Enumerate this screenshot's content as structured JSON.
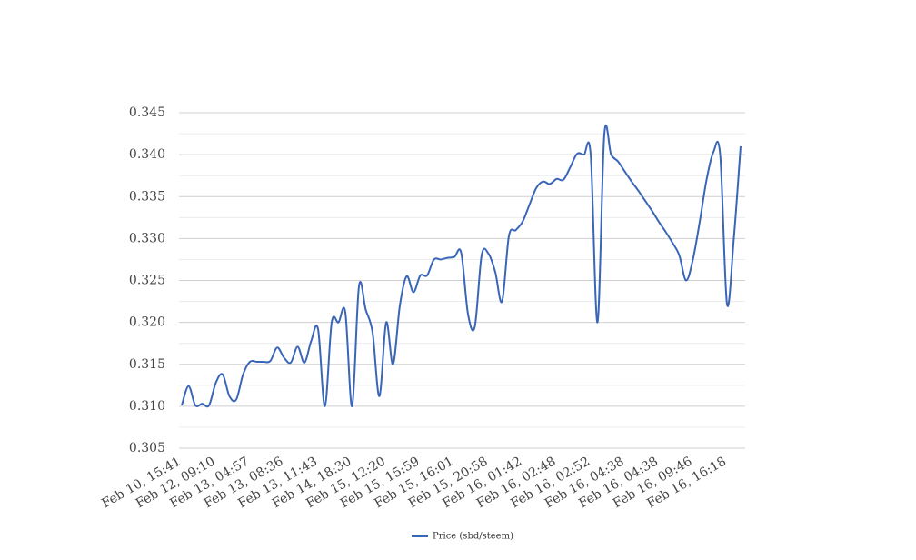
{
  "chart_data": {
    "type": "line",
    "categories": [
      "Feb 10, 15:41",
      null,
      null,
      null,
      null,
      "Feb 12, 09:10",
      null,
      null,
      null,
      null,
      "Feb 13, 04:57",
      null,
      null,
      null,
      null,
      "Feb 13, 08:36",
      null,
      null,
      null,
      null,
      "Feb 13, 11:43",
      null,
      null,
      null,
      null,
      "Feb 14, 18:30",
      null,
      null,
      null,
      null,
      "Feb 15, 12:20",
      null,
      null,
      null,
      null,
      "Feb 15, 15:59",
      null,
      null,
      null,
      null,
      "Feb 15, 16:01",
      null,
      null,
      null,
      null,
      "Feb 15, 20:58",
      null,
      null,
      null,
      null,
      "Feb 16, 01:42",
      null,
      null,
      null,
      null,
      "Feb 16, 02:48",
      null,
      null,
      null,
      null,
      "Feb 16, 02:52",
      null,
      null,
      null,
      null,
      "Feb 16, 04:38",
      null,
      null,
      null,
      null,
      "Feb 16, 04:38",
      null,
      null,
      null,
      null,
      "Feb 16, 09:46",
      null,
      null,
      null,
      null,
      "Feb 16, 16:18",
      null,
      null
    ],
    "series": [
      {
        "name": "Price (sbd/steem)",
        "color": "#3a66b8",
        "values": [
          0.3101,
          0.3124,
          0.3101,
          0.3103,
          0.3101,
          0.3128,
          0.3138,
          0.3112,
          0.3108,
          0.3138,
          0.3153,
          0.3153,
          0.3153,
          0.3154,
          0.317,
          0.3158,
          0.3152,
          0.3171,
          0.3152,
          0.3178,
          0.3192,
          0.31,
          0.32,
          0.32,
          0.3212,
          0.31,
          0.3243,
          0.3215,
          0.3188,
          0.3112,
          0.32,
          0.315,
          0.322,
          0.3255,
          0.3236,
          0.3256,
          0.3256,
          0.3275,
          0.3275,
          0.3277,
          0.3278,
          0.3283,
          0.321,
          0.3195,
          0.328,
          0.3282,
          0.326,
          0.3225,
          0.3303,
          0.331,
          0.332,
          0.334,
          0.336,
          0.3368,
          0.3365,
          0.3371,
          0.337,
          0.3385,
          0.3401,
          0.34,
          0.34,
          0.32,
          0.3424,
          0.34,
          0.3392,
          0.338,
          0.3368,
          0.3357,
          0.3345,
          0.3333,
          0.332,
          0.3308,
          0.3295,
          0.328,
          0.325,
          0.3275,
          0.332,
          0.337,
          0.3403,
          0.34,
          0.3222,
          0.33,
          0.341
        ]
      }
    ],
    "ylim": [
      0.305,
      0.345
    ],
    "yticks": [
      0.305,
      {
        "value": 0.31,
        "label": "0.310"
      },
      0.315,
      {
        "value": 0.32,
        "label": "0.320"
      },
      0.325,
      {
        "value": 0.33,
        "label": "0.330"
      },
      0.335,
      {
        "value": 0.34,
        "label": "0.340"
      },
      0.345
    ],
    "grid": true,
    "legend": "bottom"
  }
}
